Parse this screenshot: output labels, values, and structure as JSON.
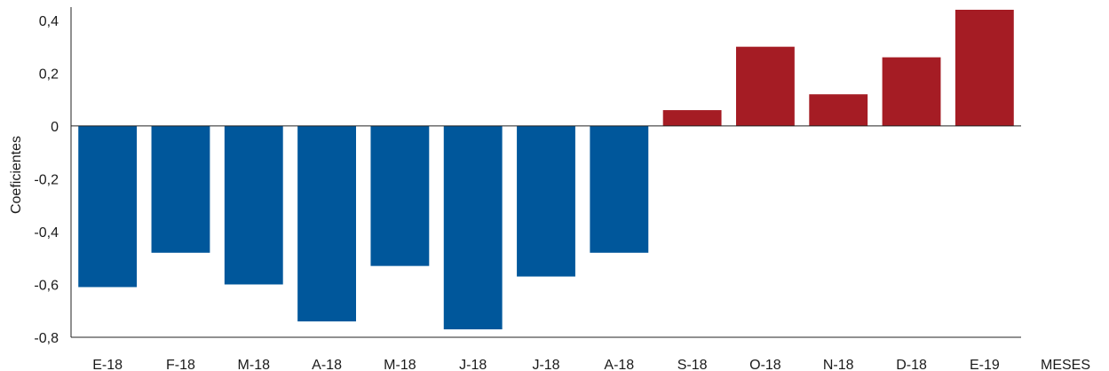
{
  "chart_data": {
    "type": "bar",
    "categories": [
      "E-18",
      "F-18",
      "M-18",
      "A-18",
      "M-18",
      "J-18",
      "J-18",
      "A-18",
      "S-18",
      "O-18",
      "N-18",
      "D-18",
      "E-19"
    ],
    "values": [
      -0.61,
      -0.48,
      -0.6,
      -0.74,
      -0.53,
      -0.77,
      -0.57,
      -0.48,
      0.06,
      0.3,
      0.12,
      0.26,
      0.44
    ],
    "xlabel": "MESES",
    "ylabel": "Coeficientes",
    "ylim": [
      -0.8,
      0.44
    ],
    "yticks": [
      "0,4",
      "0,2",
      "0",
      "-0,2",
      "-0,4",
      "-0,6",
      "-0,8"
    ],
    "ytick_values": [
      0.4,
      0.2,
      0,
      -0.2,
      -0.4,
      -0.6,
      -0.8
    ],
    "colors": {
      "negative": "#00579b",
      "positive": "#a51c24",
      "axis": "#222222"
    },
    "grid": false,
    "legend": "none"
  }
}
